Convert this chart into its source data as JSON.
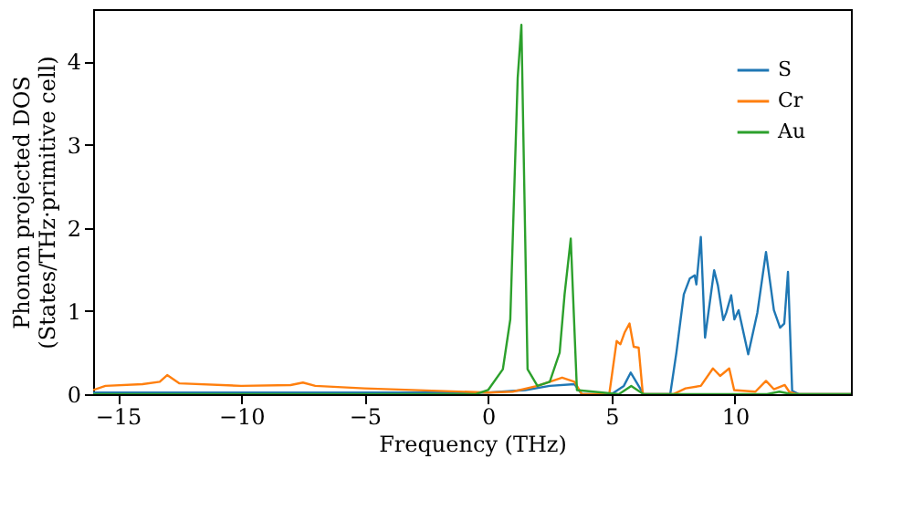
{
  "chart_data": {
    "type": "line",
    "xlabel": "Frequency (THz)",
    "ylabel": "Phonon projected DOS\n(States/THz·primitive cell)",
    "xlim": [
      -16,
      14.7
    ],
    "ylim": [
      0,
      4.63
    ],
    "xticks": [
      -15,
      -10,
      -5,
      0,
      5,
      10
    ],
    "yticks": [
      0,
      1,
      2,
      3,
      4
    ],
    "grid": false,
    "legend": "top right",
    "line_style": "solid",
    "marker": "none",
    "series": [
      {
        "name": "S",
        "color": "#1f77b4",
        "x": [
          -16,
          -10,
          -5,
          0,
          1.5,
          2.5,
          3.5,
          3.8,
          5.0,
          5.5,
          5.78,
          6.1,
          6.3,
          7.38,
          7.63,
          7.93,
          8.17,
          8.37,
          8.44,
          8.62,
          8.79,
          9.16,
          9.31,
          9.53,
          9.65,
          9.85,
          9.98,
          10.15,
          10.54,
          10.91,
          11.26,
          11.58,
          11.83,
          12.0,
          12.15,
          12.32,
          12.6,
          14.7
        ],
        "values": [
          0.02,
          0.02,
          0.02,
          0.02,
          0.05,
          0.1,
          0.12,
          0.0,
          0.0,
          0.1,
          0.26,
          0.1,
          0.0,
          0.0,
          0.5,
          1.2,
          1.39,
          1.43,
          1.32,
          1.89,
          0.68,
          1.49,
          1.31,
          0.89,
          0.98,
          1.19,
          0.9,
          1.01,
          0.48,
          0.98,
          1.71,
          1.01,
          0.8,
          0.85,
          1.47,
          0.04,
          0.0,
          0.0
        ]
      },
      {
        "name": "Cr",
        "color": "#ff7f0e",
        "x": [
          -16,
          -15.5,
          -14,
          -13.3,
          -13,
          -12.5,
          -10,
          -8,
          -7.5,
          -7,
          -5,
          -2,
          0,
          1,
          2,
          2.5,
          3,
          3.5,
          3.8,
          4.91,
          5.21,
          5.36,
          5.53,
          5.73,
          5.9,
          6.1,
          6.27,
          7.5,
          8.0,
          8.62,
          9.11,
          9.4,
          9.77,
          9.97,
          10.83,
          11.26,
          11.58,
          12.02,
          12.2,
          12.5,
          14.7
        ],
        "values": [
          0.05,
          0.1,
          0.12,
          0.15,
          0.23,
          0.13,
          0.1,
          0.11,
          0.14,
          0.1,
          0.07,
          0.04,
          0.02,
          0.03,
          0.1,
          0.15,
          0.2,
          0.15,
          0.0,
          0.0,
          0.64,
          0.6,
          0.74,
          0.85,
          0.57,
          0.56,
          0.0,
          0.0,
          0.07,
          0.1,
          0.31,
          0.22,
          0.31,
          0.05,
          0.03,
          0.16,
          0.06,
          0.11,
          0.03,
          0.0,
          0.0
        ]
      },
      {
        "name": "Au",
        "color": "#2ca02c",
        "x": [
          -16,
          -0.5,
          0,
          0.6,
          0.9,
          1.2,
          1.35,
          1.6,
          2.0,
          2.5,
          2.9,
          3.1,
          3.35,
          3.6,
          5.3,
          5.8,
          6.3,
          11.3,
          11.8,
          12.3,
          14.7
        ],
        "values": [
          0.0,
          0.0,
          0.05,
          0.3,
          0.9,
          3.8,
          4.44,
          0.3,
          0.1,
          0.15,
          0.5,
          1.2,
          1.87,
          0.05,
          0.0,
          0.1,
          0.0,
          0.0,
          0.03,
          0.0,
          0.0
        ]
      }
    ]
  }
}
